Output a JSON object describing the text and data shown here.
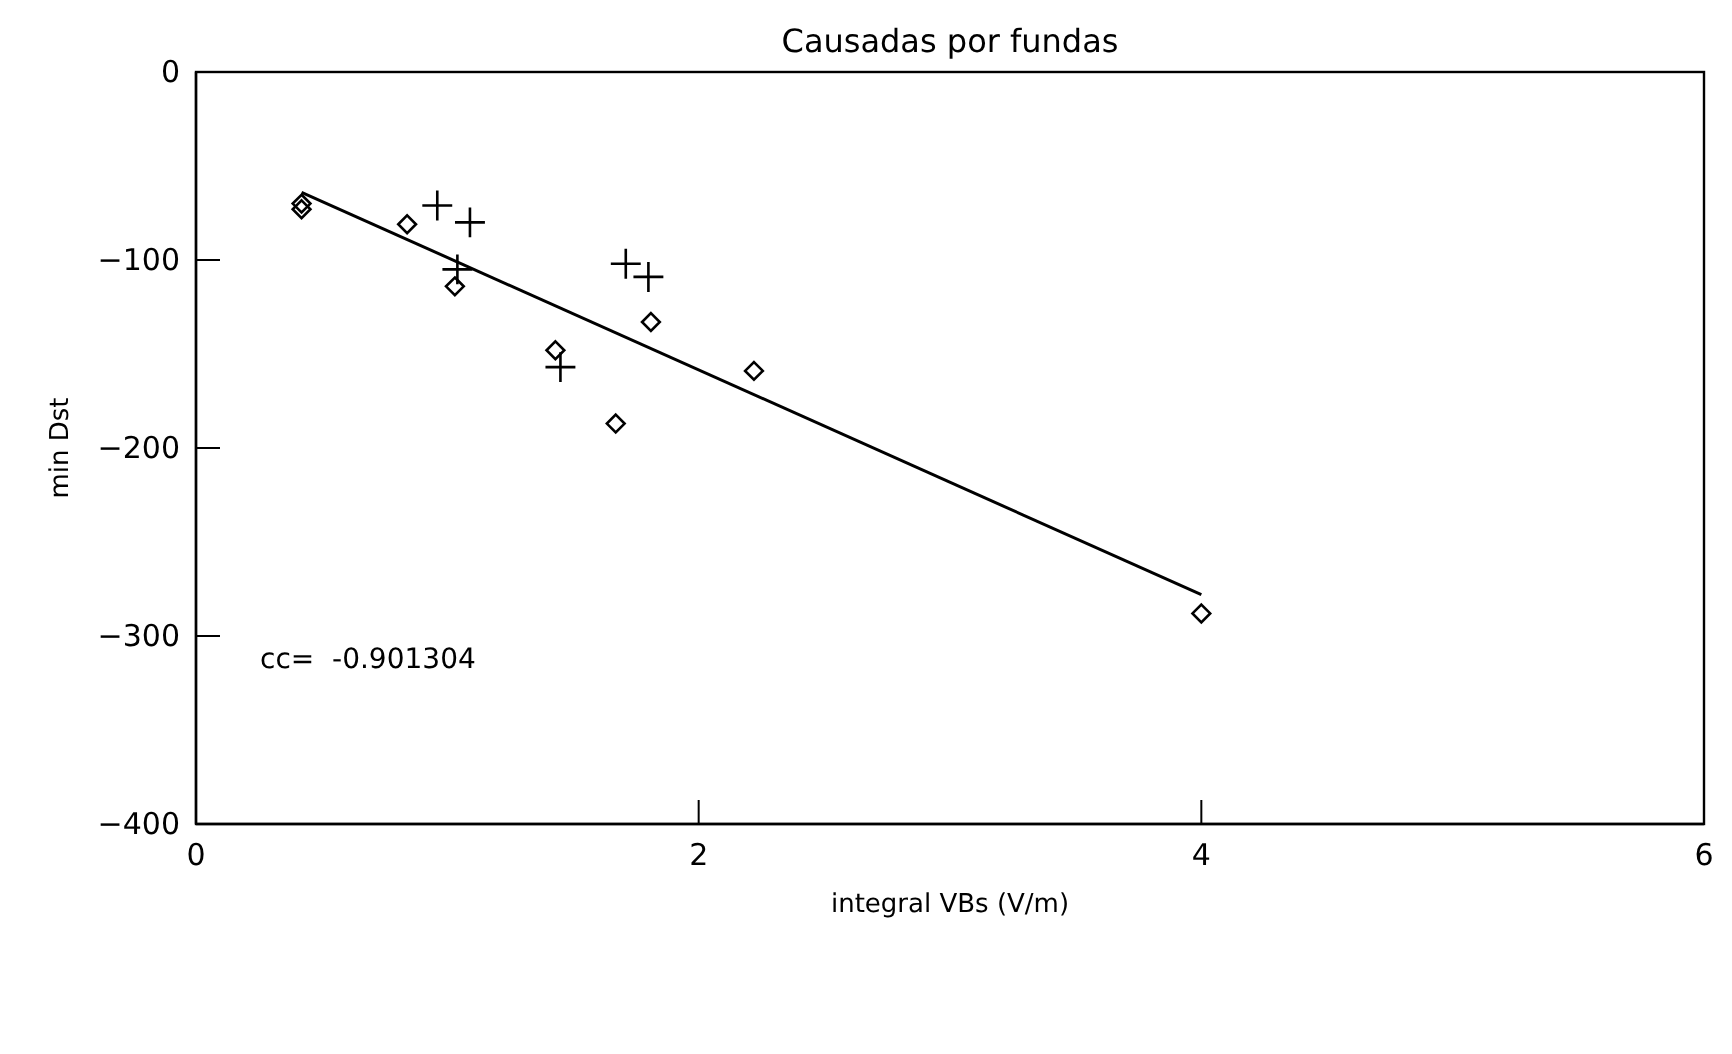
{
  "chart_data": {
    "type": "scatter",
    "title": "Causadas por fundas",
    "xlabel": "integral VBs (V/m)",
    "ylabel": "min Dst",
    "xlim": [
      0,
      6
    ],
    "xticks": [
      0,
      2,
      4,
      6
    ],
    "ylim": [
      -400,
      0
    ],
    "yticks": [
      0,
      -100,
      -200,
      -300,
      -400
    ],
    "grid": false,
    "series": [
      {
        "marker": "diamond",
        "color": "#000000",
        "x": [
          0.42,
          0.42,
          0.84,
          1.03,
          1.43,
          1.67,
          1.81,
          2.22,
          4.0
        ],
        "values": [
          -70,
          -73,
          -81,
          -114,
          -148,
          -187,
          -133,
          -159,
          -288
        ]
      },
      {
        "marker": "cross",
        "color": "#000000",
        "x": [
          0.96,
          1.09,
          1.04,
          1.45,
          1.71,
          1.8
        ],
        "values": [
          -71,
          -80,
          -105,
          -157,
          -102,
          -109
        ]
      },
      {
        "type": "line",
        "marker": "none",
        "line_style": "solid",
        "color": "#000000",
        "x": [
          0.42,
          4.0
        ],
        "values": [
          -64,
          -278
        ]
      }
    ],
    "annotations": [
      "cc=  -0.901304"
    ]
  }
}
